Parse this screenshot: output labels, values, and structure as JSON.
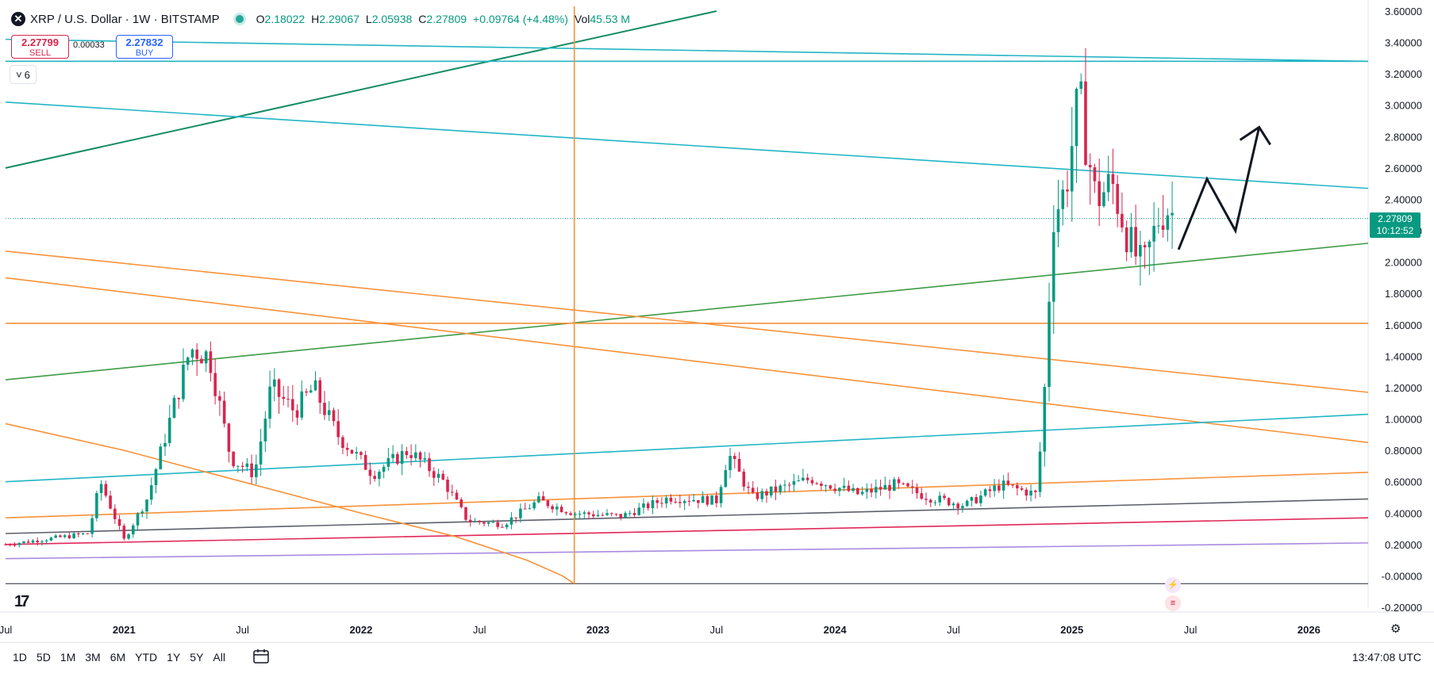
{
  "header": {
    "symbol_icon": "xrp-icon",
    "title": "XRP / U.S. Dollar · 1W · BITSTAMP",
    "ohlc": [
      {
        "key": "O",
        "value": "2.18022"
      },
      {
        "key": "H",
        "value": "2.29067"
      },
      {
        "key": "L",
        "value": "2.05938"
      },
      {
        "key": "C",
        "value": "2.27809"
      },
      {
        "key": "",
        "value": "+0.09764 (+4.48%)"
      },
      {
        "key": "Vol",
        "value": "45.53 M"
      }
    ]
  },
  "trade": {
    "sell_price": "2.27799",
    "sell_label": "SELL",
    "spread": "0.00033",
    "buy_price": "2.27832",
    "buy_label": "BUY"
  },
  "indicator_collapse": {
    "count": "6"
  },
  "current_price": {
    "price": "2.27809",
    "countdown": "10:12:52"
  },
  "toolbar": {
    "ranges": [
      "1D",
      "5D",
      "1M",
      "3M",
      "6M",
      "YTD",
      "1Y",
      "5Y",
      "All"
    ],
    "time": "13:47:08 UTC"
  },
  "colors": {
    "up": "#089981",
    "down": "#d7264e",
    "orange": "#f7923a",
    "teal": "#22b5c5",
    "green": "#3e9b46",
    "darkgreen": "#148c66",
    "red": "#e0285a",
    "purple": "#a98be0",
    "gray": "#5d606b"
  },
  "chart_data": {
    "type": "candlestick",
    "ylim": [
      -0.2,
      3.6
    ],
    "y_ticks": [
      "3.60000",
      "3.40000",
      "3.20000",
      "3.00000",
      "2.80000",
      "2.60000",
      "2.40000",
      "2.20000",
      "2.00000",
      "1.80000",
      "1.60000",
      "1.40000",
      "1.20000",
      "1.00000",
      "0.80000",
      "0.60000",
      "0.40000",
      "0.20000",
      "-0.00000",
      "-0.20000"
    ],
    "x_ticks": [
      {
        "label": "Jul",
        "t": 2020.5,
        "bold": false
      },
      {
        "label": "2021",
        "t": 2021.0,
        "bold": true
      },
      {
        "label": "Jul",
        "t": 2021.5,
        "bold": false
      },
      {
        "label": "2022",
        "t": 2022.0,
        "bold": true
      },
      {
        "label": "Jul",
        "t": 2022.5,
        "bold": false
      },
      {
        "label": "2023",
        "t": 2023.0,
        "bold": true
      },
      {
        "label": "Jul",
        "t": 2023.5,
        "bold": false
      },
      {
        "label": "2024",
        "t": 2024.0,
        "bold": true
      },
      {
        "label": "Jul",
        "t": 2024.5,
        "bold": false
      },
      {
        "label": "2025",
        "t": 2025.0,
        "bold": true
      },
      {
        "label": "Jul",
        "t": 2025.5,
        "bold": false
      },
      {
        "label": "2026",
        "t": 2026.0,
        "bold": true
      }
    ],
    "time_range": [
      2020.5,
      2026.25
    ],
    "price_guide": 2.27809,
    "waypoints": [
      {
        "t": 2020.5,
        "p": 0.2
      },
      {
        "t": 2020.85,
        "p": 0.27
      },
      {
        "t": 2020.9,
        "p": 0.6
      },
      {
        "t": 2021.0,
        "p": 0.23
      },
      {
        "t": 2021.1,
        "p": 0.5
      },
      {
        "t": 2021.28,
        "p": 1.45
      },
      {
        "t": 2021.36,
        "p": 1.4
      },
      {
        "t": 2021.45,
        "p": 0.75
      },
      {
        "t": 2021.55,
        "p": 0.65
      },
      {
        "t": 2021.62,
        "p": 1.2
      },
      {
        "t": 2021.72,
        "p": 1.05
      },
      {
        "t": 2021.8,
        "p": 1.2
      },
      {
        "t": 2021.9,
        "p": 0.9
      },
      {
        "t": 2022.05,
        "p": 0.65
      },
      {
        "t": 2022.2,
        "p": 0.8
      },
      {
        "t": 2022.35,
        "p": 0.6
      },
      {
        "t": 2022.45,
        "p": 0.35
      },
      {
        "t": 2022.6,
        "p": 0.33
      },
      {
        "t": 2022.75,
        "p": 0.48
      },
      {
        "t": 2022.9,
        "p": 0.4
      },
      {
        "t": 2023.1,
        "p": 0.38
      },
      {
        "t": 2023.3,
        "p": 0.5
      },
      {
        "t": 2023.5,
        "p": 0.48
      },
      {
        "t": 2023.55,
        "p": 0.78
      },
      {
        "t": 2023.65,
        "p": 0.5
      },
      {
        "t": 2023.9,
        "p": 0.62
      },
      {
        "t": 2024.1,
        "p": 0.52
      },
      {
        "t": 2024.25,
        "p": 0.58
      },
      {
        "t": 2024.4,
        "p": 0.5
      },
      {
        "t": 2024.55,
        "p": 0.45
      },
      {
        "t": 2024.7,
        "p": 0.58
      },
      {
        "t": 2024.85,
        "p": 0.52
      },
      {
        "t": 2024.88,
        "p": 1.05
      },
      {
        "t": 2024.92,
        "p": 2.3
      },
      {
        "t": 2024.97,
        "p": 2.45
      },
      {
        "t": 2025.03,
        "p": 3.05
      },
      {
        "t": 2025.1,
        "p": 2.4
      },
      {
        "t": 2025.17,
        "p": 2.5
      },
      {
        "t": 2025.25,
        "p": 2.1
      },
      {
        "t": 2025.3,
        "p": 1.95
      },
      {
        "t": 2025.37,
        "p": 2.3
      },
      {
        "t": 2025.4,
        "p": 2.35
      },
      {
        "t": 2025.44,
        "p": 2.28
      }
    ],
    "drawings": [
      {
        "type": "trendline",
        "color": "#148c66",
        "width": 2,
        "from": [
          2020.5,
          2.6
        ],
        "to": [
          2023.5,
          3.6
        ]
      },
      {
        "type": "trendline",
        "color": "#22b5c5",
        "width": 1.6,
        "from": [
          2020.5,
          3.42
        ],
        "to": [
          2026.25,
          3.28
        ]
      },
      {
        "type": "trendline",
        "color": "#22b5c5",
        "width": 1.6,
        "from": [
          2020.5,
          3.28
        ],
        "to": [
          2026.25,
          3.28
        ]
      },
      {
        "type": "trendline",
        "color": "#22b5c5",
        "width": 1.6,
        "from": [
          2020.5,
          3.02
        ],
        "to": [
          2026.25,
          2.47
        ]
      },
      {
        "type": "trendline",
        "color": "#3e9b46",
        "width": 1.6,
        "from": [
          2020.5,
          1.25
        ],
        "to": [
          2026.25,
          2.12
        ]
      },
      {
        "type": "trendline",
        "color": "#f7923a",
        "width": 1.6,
        "from": [
          2020.5,
          2.07
        ],
        "to": [
          2026.25,
          1.17
        ]
      },
      {
        "type": "trendline",
        "color": "#f7923a",
        "width": 1.6,
        "from": [
          2020.5,
          1.9
        ],
        "to": [
          2026.25,
          0.85
        ]
      },
      {
        "type": "trendline",
        "color": "#f7923a",
        "width": 1.6,
        "from": [
          2020.5,
          1.61
        ],
        "to": [
          2026.25,
          1.61
        ]
      },
      {
        "type": "trendline",
        "color": "#22b5c5",
        "width": 1.6,
        "from": [
          2020.5,
          0.6
        ],
        "to": [
          2026.25,
          1.03
        ]
      },
      {
        "type": "trendline",
        "color": "#f7923a",
        "width": 1.6,
        "from": [
          2020.5,
          0.37
        ],
        "to": [
          2026.25,
          0.66
        ]
      },
      {
        "type": "trendline",
        "color": "#5d606b",
        "width": 1.6,
        "from": [
          2020.5,
          0.27
        ],
        "to": [
          2026.25,
          0.49
        ]
      },
      {
        "type": "trendline",
        "color": "#e0285a",
        "width": 1.6,
        "from": [
          2020.5,
          0.2
        ],
        "to": [
          2026.25,
          0.37
        ]
      },
      {
        "type": "trendline",
        "color": "#a98be0",
        "width": 1.6,
        "from": [
          2020.5,
          0.11
        ],
        "to": [
          2026.25,
          0.21
        ]
      },
      {
        "type": "trendline",
        "color": "#5d606b",
        "width": 1.4,
        "from": [
          2020.5,
          -0.05
        ],
        "to": [
          2026.25,
          -0.05
        ]
      },
      {
        "type": "vertical",
        "color": "#f7923a",
        "width": 1.6,
        "t": 2022.9
      },
      {
        "type": "curve",
        "color": "#f7923a",
        "width": 1.6,
        "points": [
          [
            2020.5,
            0.97
          ],
          [
            2021.0,
            0.8
          ],
          [
            2021.5,
            0.6
          ],
          [
            2022.0,
            0.4
          ],
          [
            2022.4,
            0.25
          ],
          [
            2022.7,
            0.1
          ],
          [
            2022.85,
            0.0
          ],
          [
            2022.9,
            -0.05
          ]
        ]
      },
      {
        "type": "arrow",
        "color": "#131722",
        "width": 3,
        "points": [
          [
            2025.45,
            2.08
          ],
          [
            2025.57,
            2.53
          ],
          [
            2025.69,
            2.2
          ],
          [
            2025.79,
            2.86
          ]
        ]
      }
    ]
  }
}
